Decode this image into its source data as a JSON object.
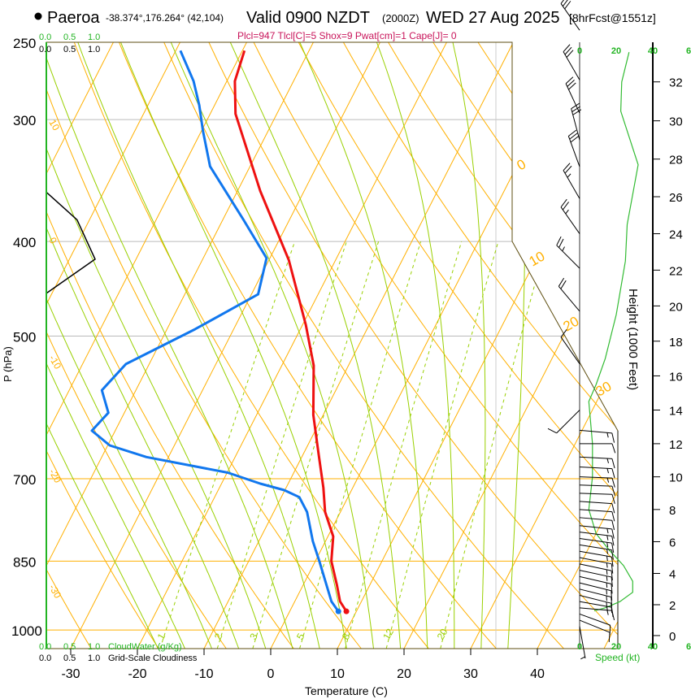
{
  "header": {
    "station": "Paeroa",
    "coords": "-38.374°,176.264° (42,104)",
    "valid": "Valid 0900 NZDT",
    "zulu": "(2000Z)",
    "date": "WED 27 Aug 2025",
    "forecast": "[8hrFcst@1551z]",
    "indices": "Plcl=947 Tlcl[C]=5 Shox=9 Pwat[cm]=1 Cape[J]= 0"
  },
  "colors": {
    "temperature": "#ee1111",
    "dewpoint": "#1177ee",
    "isotherm": "#ffb000",
    "adiabat": "#99d000",
    "indices": "#c8145a",
    "scale_green": "#22b422",
    "frame": "#5e4e10"
  },
  "chart_data": {
    "type": "line",
    "title": "Skew-T Log-P sounding",
    "xlabel": "Temperature (C)",
    "ylabel": "P (hPa)",
    "y2label": "Height (1000 Feet)",
    "pressure_ticks": [
      "250",
      "300",
      "400",
      "500",
      "700",
      "850",
      "1000"
    ],
    "temp_ticks": [
      "-30",
      "-20",
      "-10",
      "0",
      "10",
      "20",
      "30",
      "40"
    ],
    "height_ticks": [
      "0",
      "2",
      "4",
      "6",
      "8",
      "10",
      "12",
      "14",
      "16",
      "18",
      "20",
      "22",
      "24",
      "26",
      "28",
      "30",
      "32"
    ],
    "xlim": [
      -34,
      47
    ],
    "ylim_hpa": [
      1045,
      250
    ],
    "isotherm_labels": [
      "0",
      "10",
      "20",
      "30"
    ],
    "dry_adiabat_labels": [
      "10",
      "0",
      "-10",
      "-20",
      "-30"
    ],
    "mixing_ratio_labels": [
      "1",
      "2",
      "3",
      "5",
      "8",
      "12",
      "20"
    ],
    "mixing_ratios_gkg": [
      1,
      2,
      3,
      5,
      8,
      12,
      20
    ],
    "temperature": [
      {
        "p": 957,
        "t": 8.5
      },
      {
        "p": 935,
        "t": 6.8
      },
      {
        "p": 900,
        "t": 5.1
      },
      {
        "p": 850,
        "t": 2.4
      },
      {
        "p": 802,
        "t": 0.8
      },
      {
        "p": 757,
        "t": -2.3
      },
      {
        "p": 715,
        "t": -4.4
      },
      {
        "p": 662,
        "t": -7.6
      },
      {
        "p": 602,
        "t": -11.5
      },
      {
        "p": 536,
        "t": -15.2
      },
      {
        "p": 487,
        "t": -19.5
      },
      {
        "p": 418,
        "t": -27.0
      },
      {
        "p": 355,
        "t": -36.6
      },
      {
        "p": 296,
        "t": -46.2
      },
      {
        "p": 274,
        "t": -48.8
      },
      {
        "p": 255,
        "t": -49.7
      }
    ],
    "dewpoint": [
      {
        "p": 957,
        "t": 7.3
      },
      {
        "p": 935,
        "t": 5.5
      },
      {
        "p": 850,
        "t": 0.6
      },
      {
        "p": 811,
        "t": -1.9
      },
      {
        "p": 757,
        "t": -5.0
      },
      {
        "p": 731,
        "t": -7.3
      },
      {
        "p": 719,
        "t": -10.1
      },
      {
        "p": 708,
        "t": -14.2
      },
      {
        "p": 690,
        "t": -19.9
      },
      {
        "p": 665,
        "t": -33.3
      },
      {
        "p": 647,
        "t": -39.7
      },
      {
        "p": 625,
        "t": -43.5
      },
      {
        "p": 599,
        "t": -42.4
      },
      {
        "p": 568,
        "t": -45.1
      },
      {
        "p": 534,
        "t": -43.5
      },
      {
        "p": 492,
        "t": -35.8
      },
      {
        "p": 453,
        "t": -29.0
      },
      {
        "p": 416,
        "t": -30.5
      },
      {
        "p": 380,
        "t": -36.9
      },
      {
        "p": 335,
        "t": -46.0
      },
      {
        "p": 308,
        "t": -49.8
      },
      {
        "p": 290,
        "t": -52.3
      },
      {
        "p": 274,
        "t": -55.0
      },
      {
        "p": 255,
        "t": -59.3
      }
    ],
    "cloudiness": [
      {
        "p": 356,
        "v": 0
      },
      {
        "p": 380,
        "v": 0.63
      },
      {
        "p": 417,
        "v": 1.0
      },
      {
        "p": 452,
        "v": 0
      }
    ],
    "cloud_scale": {
      "ticks": [
        "0.0",
        "0.5",
        "1.0"
      ],
      "cloudwater_label": "CloudWater (g/Kg)",
      "cloudiness_label": "Grid-Scale Cloudiness"
    },
    "speed_scale": {
      "ticks": [
        "0",
        "20",
        "40",
        "6"
      ],
      "label": "Speed (kt)"
    },
    "wind_speed_profile": [
      {
        "h": 33.5,
        "kt": 27
      },
      {
        "h": 32,
        "kt": 23
      },
      {
        "h": 30.5,
        "kt": 22.5
      },
      {
        "h": 27.7,
        "kt": 32
      },
      {
        "h": 24.5,
        "kt": 26
      },
      {
        "h": 22.5,
        "kt": 25
      },
      {
        "h": 19.5,
        "kt": 20
      },
      {
        "h": 17,
        "kt": 14
      },
      {
        "h": 15.5,
        "kt": 9
      },
      {
        "h": 14.5,
        "kt": 5
      },
      {
        "h": 12,
        "kt": 7
      },
      {
        "h": 10,
        "kt": 7
      },
      {
        "h": 8,
        "kt": 5
      },
      {
        "h": 6.5,
        "kt": 9
      },
      {
        "h": 5.5,
        "kt": 16
      },
      {
        "h": 4.5,
        "kt": 24
      },
      {
        "h": 3.5,
        "kt": 29
      },
      {
        "h": 2.8,
        "kt": 29
      },
      {
        "h": 2.2,
        "kt": 22
      },
      {
        "h": 1.8,
        "kt": 14
      },
      {
        "h": 1.6,
        "kt": 8
      }
    ],
    "wind_barbs": [
      {
        "h": 34.6,
        "kt": 30,
        "dir": 325
      },
      {
        "h": 32.1,
        "kt": 30,
        "dir": 330
      },
      {
        "h": 30.4,
        "kt": 30,
        "dir": 335
      },
      {
        "h": 29.0,
        "kt": 30,
        "dir": 345
      },
      {
        "h": 27.6,
        "kt": 30,
        "dir": 340
      },
      {
        "h": 25.9,
        "kt": 25,
        "dir": 330
      },
      {
        "h": 24.0,
        "kt": 25,
        "dir": 325
      },
      {
        "h": 22.1,
        "kt": 25,
        "dir": 315
      },
      {
        "h": 19.7,
        "kt": 20,
        "dir": 320
      },
      {
        "h": 16.7,
        "kt": 10,
        "dir": 325
      },
      {
        "h": 14.0,
        "kt": 10,
        "dir": 225
      },
      {
        "h": 12.8,
        "kt": 15,
        "dir": 95
      },
      {
        "h": 12.0,
        "kt": 10,
        "dir": 90
      },
      {
        "h": 11.2,
        "kt": 15,
        "dir": 93
      },
      {
        "h": 10.6,
        "kt": 15,
        "dir": 93
      },
      {
        "h": 10.0,
        "kt": 15,
        "dir": 92
      },
      {
        "h": 9.5,
        "kt": 10,
        "dir": 92
      },
      {
        "h": 9.0,
        "kt": 10,
        "dir": 92
      },
      {
        "h": 8.5,
        "kt": 10,
        "dir": 94
      },
      {
        "h": 8.0,
        "kt": 10,
        "dir": 94
      },
      {
        "h": 7.5,
        "kt": 10,
        "dir": 95
      },
      {
        "h": 7.0,
        "kt": 15,
        "dir": 96
      },
      {
        "h": 6.6,
        "kt": 15,
        "dir": 97
      },
      {
        "h": 6.2,
        "kt": 15,
        "dir": 98
      },
      {
        "h": 5.8,
        "kt": 15,
        "dir": 99
      },
      {
        "h": 5.4,
        "kt": 15,
        "dir": 100
      },
      {
        "h": 5.0,
        "kt": 15,
        "dir": 101
      },
      {
        "h": 4.6,
        "kt": 15,
        "dir": 102
      },
      {
        "h": 4.2,
        "kt": 15,
        "dir": 102
      },
      {
        "h": 3.8,
        "kt": 15,
        "dir": 103
      },
      {
        "h": 3.4,
        "kt": 15,
        "dir": 104
      },
      {
        "h": 3.0,
        "kt": 15,
        "dir": 104
      },
      {
        "h": 2.6,
        "kt": 15,
        "dir": 104
      },
      {
        "h": 2.2,
        "kt": 15,
        "dir": 100
      },
      {
        "h": 1.8,
        "kt": 15,
        "dir": 95
      },
      {
        "h": 1.4,
        "kt": 10,
        "dir": 110
      },
      {
        "h": 1.0,
        "kt": 10,
        "dir": 112
      },
      {
        "h": 0.6,
        "kt": 5,
        "dir": 170
      }
    ]
  }
}
